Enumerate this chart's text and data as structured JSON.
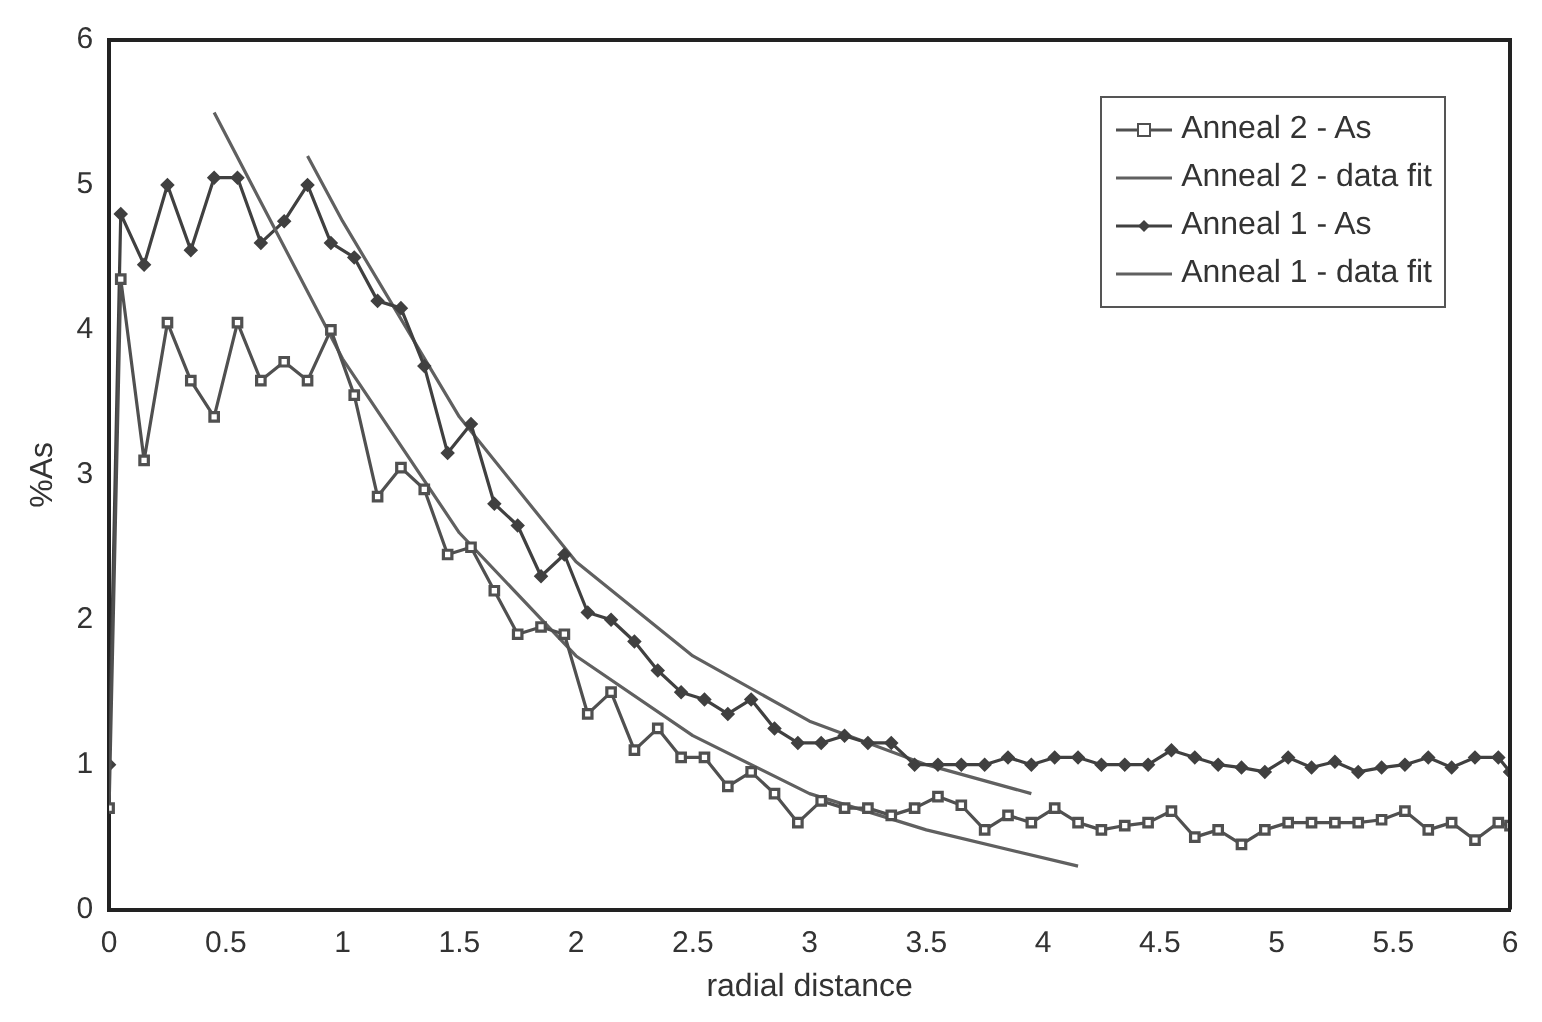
{
  "chart_data": {
    "type": "line",
    "xlabel": "radial distance",
    "ylabel": "%As",
    "xlim": [
      0,
      6
    ],
    "ylim": [
      0,
      6
    ],
    "xticks": [
      0,
      0.5,
      1,
      1.5,
      2,
      2.5,
      3,
      3.5,
      4,
      4.5,
      5,
      5.5,
      6
    ],
    "yticks": [
      0,
      1,
      2,
      3,
      4,
      5,
      6
    ],
    "grid": false,
    "legend": "top right",
    "line_style": "solid",
    "series": [
      {
        "name": "Anneal 2 - As",
        "color": "#505050",
        "marker": "square",
        "x": [
          0,
          0.05,
          0.15,
          0.25,
          0.35,
          0.45,
          0.55,
          0.65,
          0.75,
          0.85,
          0.95,
          1.05,
          1.15,
          1.25,
          1.35,
          1.45,
          1.55,
          1.65,
          1.75,
          1.85,
          1.95,
          2.05,
          2.15,
          2.25,
          2.35,
          2.45,
          2.55,
          2.65,
          2.75,
          2.85,
          2.95,
          3.05,
          3.15,
          3.25,
          3.35,
          3.45,
          3.55,
          3.65,
          3.75,
          3.85,
          3.95,
          4.05,
          4.15,
          4.25,
          4.35,
          4.45,
          4.55,
          4.65,
          4.75,
          4.85,
          4.95,
          5.05,
          5.15,
          5.25,
          5.35,
          5.45,
          5.55,
          5.65,
          5.75,
          5.85,
          5.95,
          6
        ],
        "values": [
          0.7,
          4.35,
          3.1,
          4.05,
          3.65,
          3.4,
          4.05,
          3.65,
          3.78,
          3.65,
          4,
          3.55,
          2.85,
          3.05,
          2.9,
          2.45,
          2.5,
          2.2,
          1.9,
          1.95,
          1.9,
          1.35,
          1.5,
          1.1,
          1.25,
          1.05,
          1.05,
          0.85,
          0.95,
          0.8,
          0.6,
          0.75,
          0.7,
          0.7,
          0.65,
          0.7,
          0.78,
          0.72,
          0.55,
          0.65,
          0.6,
          0.7,
          0.6,
          0.55,
          0.58,
          0.6,
          0.68,
          0.5,
          0.55,
          0.45,
          0.55,
          0.6,
          0.6,
          0.6,
          0.6,
          0.62,
          0.68,
          0.55,
          0.6,
          0.48,
          0.6,
          0.58
        ]
      },
      {
        "name": "Anneal 2 - data fit",
        "color": "#606060",
        "marker": "none",
        "x": [
          0.45,
          1,
          1.5,
          2,
          2.5,
          3,
          3.5,
          4.15
        ],
        "values": [
          5.5,
          3.8,
          2.6,
          1.75,
          1.2,
          0.8,
          0.55,
          0.3
        ]
      },
      {
        "name": "Anneal 1 - As",
        "color": "#404040",
        "marker": "diamond",
        "x": [
          0,
          0.05,
          0.15,
          0.25,
          0.35,
          0.45,
          0.55,
          0.65,
          0.75,
          0.85,
          0.95,
          1.05,
          1.15,
          1.25,
          1.35,
          1.45,
          1.55,
          1.65,
          1.75,
          1.85,
          1.95,
          2.05,
          2.15,
          2.25,
          2.35,
          2.45,
          2.55,
          2.65,
          2.75,
          2.85,
          2.95,
          3.05,
          3.15,
          3.25,
          3.35,
          3.45,
          3.55,
          3.65,
          3.75,
          3.85,
          3.95,
          4.05,
          4.15,
          4.25,
          4.35,
          4.45,
          4.55,
          4.65,
          4.75,
          4.85,
          4.95,
          5.05,
          5.15,
          5.25,
          5.35,
          5.45,
          5.55,
          5.65,
          5.75,
          5.85,
          5.95,
          6
        ],
        "values": [
          1,
          4.8,
          4.45,
          5,
          4.55,
          5.05,
          5.05,
          4.6,
          4.75,
          5,
          4.6,
          4.5,
          4.2,
          4.15,
          3.75,
          3.15,
          3.35,
          2.8,
          2.65,
          2.3,
          2.45,
          2.05,
          2,
          1.85,
          1.65,
          1.5,
          1.45,
          1.35,
          1.45,
          1.25,
          1.15,
          1.15,
          1.2,
          1.15,
          1.15,
          1,
          1,
          1,
          1,
          1.05,
          1,
          1.05,
          1.05,
          1,
          1,
          1,
          1.1,
          1.05,
          1,
          0.98,
          0.95,
          1.05,
          0.98,
          1.02,
          0.95,
          0.98,
          1,
          1.05,
          0.98,
          1.05,
          1.05,
          0.95
        ]
      },
      {
        "name": "Anneal 1 - data fit",
        "color": "#606060",
        "marker": "none",
        "x": [
          0.85,
          1,
          1.5,
          2,
          2.5,
          3,
          3.5,
          3.95
        ],
        "values": [
          5.2,
          4.75,
          3.4,
          2.4,
          1.75,
          1.3,
          1,
          0.8
        ]
      }
    ]
  }
}
